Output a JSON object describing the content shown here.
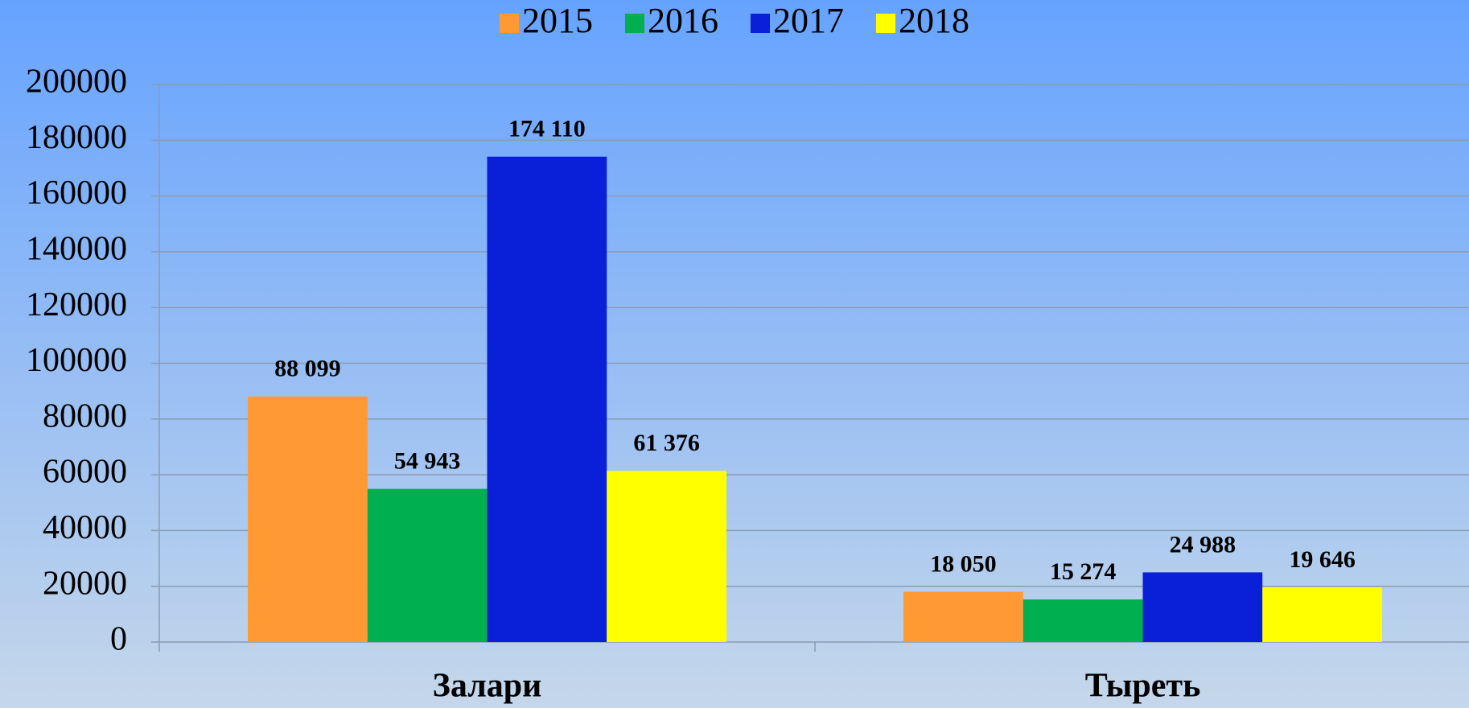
{
  "chart_data": {
    "type": "bar",
    "categories": [
      "Залари",
      "Тыреть"
    ],
    "series": [
      {
        "name": "2015",
        "color": "#ff9933",
        "values": [
          88099,
          18050
        ],
        "value_labels": [
          "88 099",
          "18 050"
        ]
      },
      {
        "name": "2016",
        "color": "#00b050",
        "values": [
          54943,
          15274
        ],
        "value_labels": [
          "54 943",
          "15 274"
        ]
      },
      {
        "name": "2017",
        "color": "#0a1fd8",
        "values": [
          174110,
          24988
        ],
        "value_labels": [
          "174 110",
          "24 988"
        ]
      },
      {
        "name": "2018",
        "color": "#ffff00",
        "values": [
          61376,
          19646
        ],
        "value_labels": [
          "61 376",
          "19 646"
        ]
      }
    ],
    "ylim": [
      0,
      200000
    ],
    "yticks": [
      0,
      20000,
      40000,
      60000,
      80000,
      100000,
      120000,
      140000,
      160000,
      180000,
      200000
    ],
    "grid": true,
    "legend": "top"
  }
}
